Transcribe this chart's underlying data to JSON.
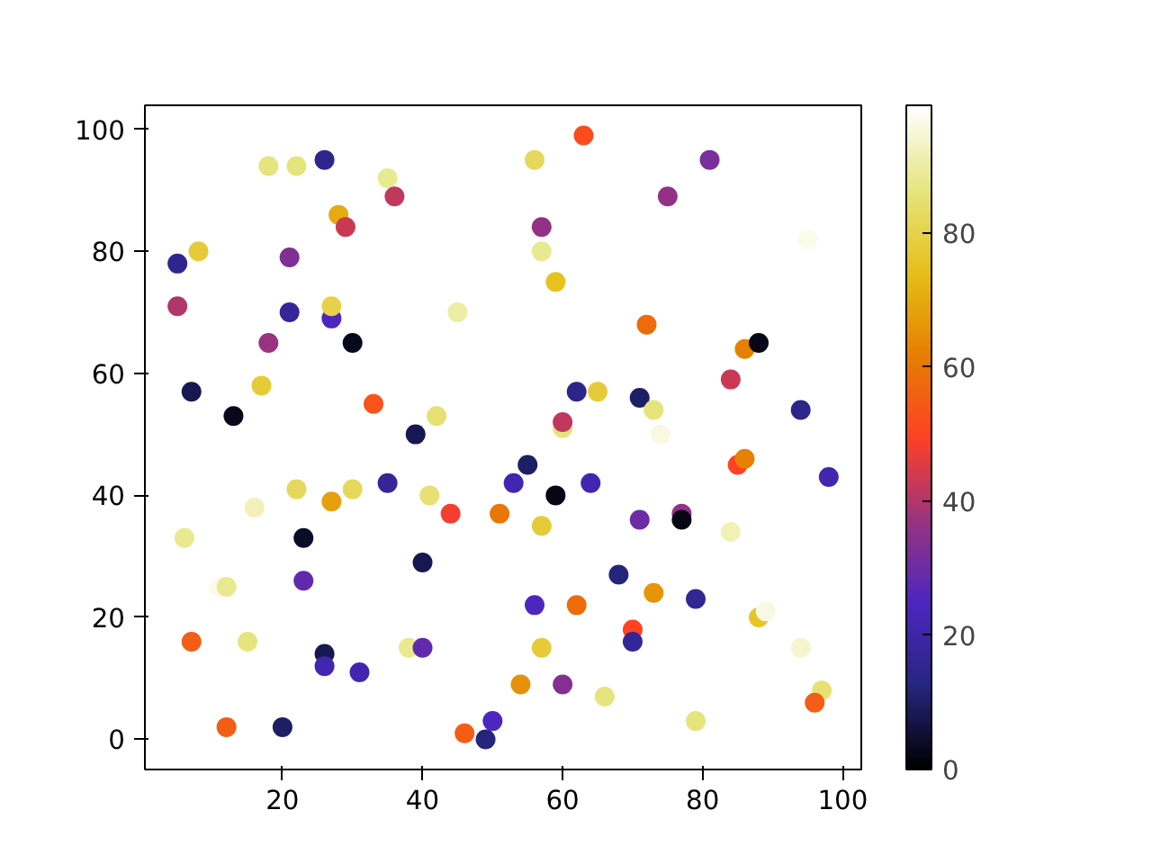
{
  "chart_data": {
    "type": "scatter",
    "marker": "circle",
    "grid": false,
    "xlim": [
      0.35,
      102.65
    ],
    "ylim": [
      -4.95,
      103.95
    ],
    "xticks": [
      20,
      40,
      60,
      80,
      100
    ],
    "yticks": [
      0,
      20,
      40,
      60,
      80,
      100
    ],
    "clim": [
      0,
      99
    ],
    "cticks": [
      0,
      20,
      40,
      60,
      80
    ],
    "x": [
      5,
      5,
      8,
      7,
      13,
      6,
      7,
      11,
      12,
      12,
      15,
      16,
      17,
      18,
      18,
      21,
      21,
      22,
      22,
      20,
      23,
      23,
      26,
      26,
      26,
      27,
      27,
      28,
      29,
      27,
      30,
      30,
      31,
      33,
      35,
      35,
      36,
      39,
      38,
      40,
      40,
      41,
      42,
      44,
      45,
      46,
      49,
      50,
      51,
      55,
      53,
      59,
      64,
      57,
      71,
      77,
      77,
      84,
      85,
      86,
      98,
      68,
      73,
      79,
      56,
      62,
      88,
      89,
      70,
      70,
      57,
      94,
      54,
      60,
      66,
      97,
      96,
      79,
      60,
      74,
      63,
      56,
      81,
      75,
      57,
      57,
      59,
      95,
      72,
      86,
      88,
      84,
      62,
      65,
      71,
      73,
      94,
      60
    ],
    "values": [
      78,
      71,
      80,
      57,
      53,
      33,
      16,
      25,
      25,
      2,
      16,
      38,
      58,
      65,
      94,
      79,
      70,
      94,
      41,
      2,
      33,
      26,
      95,
      14,
      12,
      69,
      71,
      86,
      84,
      39,
      65,
      41,
      11,
      55,
      42,
      92,
      89,
      50,
      15,
      15,
      29,
      40,
      53,
      37,
      70,
      1,
      0,
      3,
      37,
      45,
      42,
      40,
      42,
      35,
      36,
      37,
      36,
      34,
      45,
      46,
      43,
      27,
      24,
      23,
      22,
      22,
      20,
      21,
      18,
      16,
      15,
      15,
      9,
      9,
      7,
      8,
      6,
      3,
      51,
      50,
      99,
      95,
      95,
      89,
      84,
      80,
      75,
      82,
      68,
      64,
      65,
      59,
      57,
      57,
      56,
      54,
      54,
      52
    ],
    "cvalues": [
      15,
      40,
      78,
      8,
      3,
      88,
      55,
      97,
      88,
      55,
      86,
      92,
      78,
      37,
      86,
      33,
      17,
      86,
      82,
      10,
      4,
      28,
      15,
      8,
      22,
      25,
      80,
      70,
      43,
      68,
      3,
      82,
      22,
      53,
      17,
      88,
      42,
      8,
      88,
      28,
      8,
      85,
      85,
      48,
      90,
      55,
      12,
      25,
      60,
      10,
      22,
      2,
      22,
      78,
      30,
      36,
      2,
      92,
      50,
      62,
      22,
      12,
      66,
      16,
      25,
      58,
      76,
      96,
      50,
      17,
      78,
      94,
      65,
      34,
      86,
      85,
      55,
      86,
      86,
      96,
      52,
      82,
      32,
      36,
      36,
      88,
      75,
      97,
      58,
      62,
      2,
      43,
      14,
      78,
      10,
      86,
      14,
      42
    ]
  }
}
